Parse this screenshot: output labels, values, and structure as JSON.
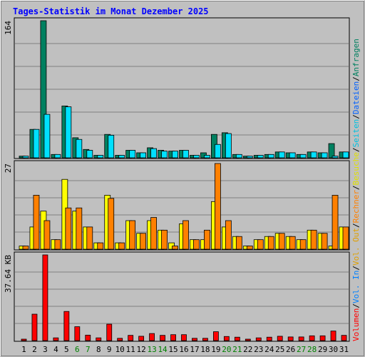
{
  "chart_data": {
    "type": "bar",
    "title": "Tages-Statistik im Monat Dezember 2025",
    "categories": [
      "1",
      "2",
      "3",
      "4",
      "5",
      "6",
      "7",
      "8",
      "9",
      "10",
      "11",
      "12",
      "13",
      "14",
      "15",
      "16",
      "17",
      "18",
      "19",
      "20",
      "21",
      "22",
      "23",
      "24",
      "25",
      "26",
      "27",
      "28",
      "29",
      "30",
      "31"
    ],
    "weekend_days": [
      "6",
      "7",
      "13",
      "14",
      "20",
      "21",
      "27",
      "28"
    ],
    "colors": {
      "weekday_label": "#000000",
      "weekend_label": "#008000",
      "title": "#0000ff"
    },
    "panels": [
      {
        "id": "requests",
        "ymax_label": "164",
        "ylim": [
          0,
          164
        ],
        "series": [
          {
            "name": "Anfragen",
            "color": "#008060",
            "values": [
              2,
              34,
              164,
              4,
              62,
              24,
              10,
              3,
              28,
              3,
              9,
              6,
              12,
              9,
              8,
              9,
              3,
              6,
              28,
              30,
              4,
              2,
              3,
              4,
              7,
              6,
              4,
              7,
              6,
              17,
              7
            ]
          },
          {
            "name": "Dateien",
            "color": "#00e0ff",
            "values": [
              2,
              34,
              52,
              4,
              61,
              22,
              9,
              3,
              27,
              3,
              9,
              6,
              11,
              8,
              8,
              9,
              3,
              3,
              16,
              29,
              4,
              2,
              3,
              4,
              7,
              6,
              4,
              7,
              6,
              2,
              7
            ]
          },
          {
            "name": "Seiten",
            "color": "#00e0ff",
            "values": []
          }
        ]
      },
      {
        "id": "visits",
        "ymax_label": "27",
        "ylim": [
          0,
          27
        ],
        "series": [
          {
            "name": "Besuche",
            "color": "#ffff00",
            "values": [
              1,
              7,
              12,
              3,
              22,
              12,
              7,
              2,
              17,
              2,
              9,
              5,
              9,
              6,
              2,
              8,
              3,
              3,
              15,
              7,
              4,
              1,
              3,
              4,
              5,
              4,
              3,
              6,
              5,
              1,
              7
            ]
          },
          {
            "name": "Rechner",
            "color": "#ff8000",
            "values": [
              1,
              17,
              9,
              3,
              13,
              13,
              7,
              2,
              16,
              2,
              9,
              5,
              10,
              6,
              1,
              9,
              3,
              6,
              27,
              9,
              4,
              1,
              3,
              4,
              5,
              4,
              3,
              6,
              5,
              17,
              7
            ]
          }
        ]
      },
      {
        "id": "volume",
        "ymax_label": "37.64 KB",
        "ylim": [
          0,
          37.64
        ],
        "series": [
          {
            "name": "Volumen",
            "color": "#ff0000",
            "values": [
              0.6,
              11.6,
              37.64,
              1.2,
              12.8,
              6.1,
              2.4,
              1.2,
              7.2,
              1.0,
              2.3,
              1.9,
              3.1,
              2.3,
              2.6,
              2.6,
              1.0,
              1.0,
              3.9,
              1.8,
              1.5,
              0.6,
              1.2,
              1.5,
              1.9,
              1.6,
              1.6,
              2.1,
              2.1,
              4.2,
              2.3
            ]
          }
        ]
      }
    ],
    "right_legend": {
      "top": [
        {
          "text": "Anfragen",
          "color": "#008060"
        },
        {
          "text": "/",
          "color": "#000000"
        },
        {
          "text": "Dateien",
          "color": "#0060ff"
        },
        {
          "text": "/",
          "color": "#000000"
        },
        {
          "text": "Seiten",
          "color": "#00c0e0"
        },
        {
          "text": "/",
          "color": "#000000"
        },
        {
          "text": "Besuche",
          "color": "#e0e000"
        },
        {
          "text": "/",
          "color": "#000000"
        },
        {
          "text": "Rechner",
          "color": "#ff8000"
        },
        {
          "text": "/",
          "color": "#000000"
        },
        {
          "text": "Vol. Out",
          "color": "#e0a000"
        },
        {
          "text": "/",
          "color": "#000000"
        },
        {
          "text": "Vol. In",
          "color": "#0080ff"
        },
        {
          "text": "/",
          "color": "#000000"
        },
        {
          "text": "Volumen",
          "color": "#ff0000"
        }
      ]
    }
  }
}
